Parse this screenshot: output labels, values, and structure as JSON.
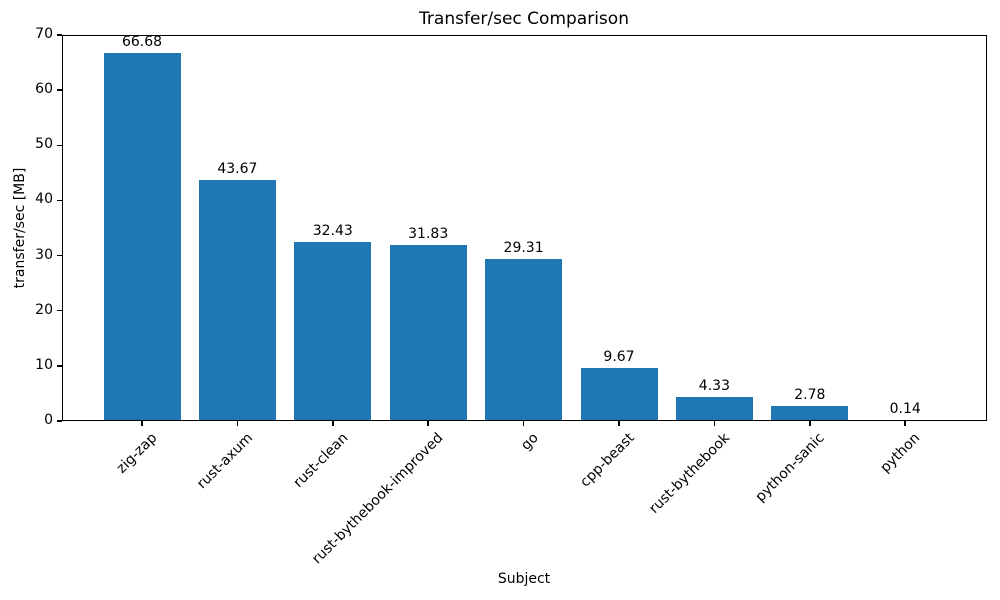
{
  "chart_data": {
    "type": "bar",
    "title": "Transfer/sec Comparison",
    "xlabel": "Subject",
    "ylabel": "transfer/sec [MB]",
    "categories": [
      "zig-zap",
      "rust-axum",
      "rust-clean",
      "rust-bythebook-improved",
      "go",
      "cpp-beast",
      "rust-bythebook",
      "python-sanic",
      "python"
    ],
    "values": [
      66.68,
      43.67,
      32.43,
      31.83,
      29.31,
      9.67,
      4.33,
      2.78,
      0.14
    ],
    "bar_labels": [
      "66.68",
      "43.67",
      "32.43",
      "31.83",
      "29.31",
      "9.67",
      "4.33",
      "2.78",
      "0.14"
    ],
    "ylim": [
      0,
      70
    ],
    "yticks": [
      0,
      10,
      20,
      30,
      40,
      50,
      60,
      70
    ],
    "bar_color": "#1f77b4",
    "grid": false,
    "legend": null
  }
}
